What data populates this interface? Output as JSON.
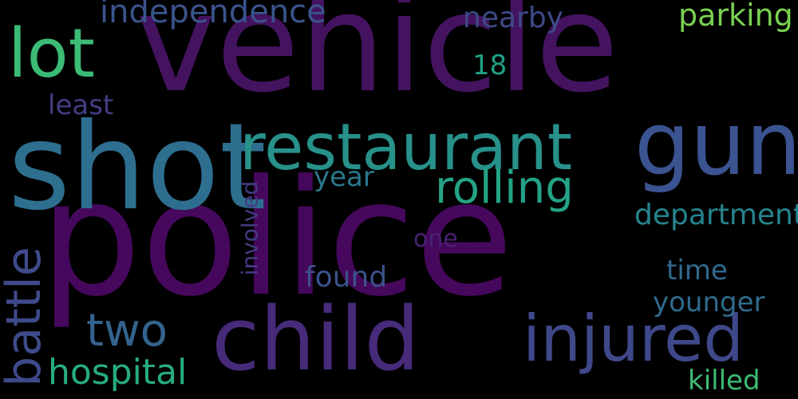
{
  "word_cloud": {
    "background": "#000000",
    "words": {
      "police": {
        "text": "police",
        "color": "#46085C"
      },
      "vehicle": {
        "text": "vehicle",
        "color": "#44135F"
      },
      "shot": {
        "text": "shot",
        "color": "#2E6E8E"
      },
      "child": {
        "text": "child",
        "color": "#472A7A"
      },
      "restaurant": {
        "text": "restaurant",
        "color": "#27918A"
      },
      "gun": {
        "text": "gun",
        "color": "#3B5390"
      },
      "lot": {
        "text": "lot",
        "color": "#3BBB75"
      },
      "injured": {
        "text": "injured",
        "color": "#3F4889"
      },
      "rolling": {
        "text": "rolling",
        "color": "#24A386"
      },
      "battle": {
        "text": "battle",
        "color": "#3F4A8A"
      },
      "two": {
        "text": "two",
        "color": "#33638D"
      },
      "hospital": {
        "text": "hospital",
        "color": "#27AD81"
      },
      "independence": {
        "text": "independence",
        "color": "#3A548C"
      },
      "parking": {
        "text": "parking",
        "color": "#7AD151"
      },
      "nearby": {
        "text": "nearby",
        "color": "#3E4A89"
      },
      "department": {
        "text": "department",
        "color": "#25848E"
      },
      "involved": {
        "text": "involved",
        "color": "#443A83"
      },
      "found": {
        "text": "found",
        "color": "#3B528B"
      },
      "time": {
        "text": "time",
        "color": "#31688E"
      },
      "younger": {
        "text": "younger",
        "color": "#2F6B8E"
      },
      "killed": {
        "text": "killed",
        "color": "#3DBC74"
      },
      "year": {
        "text": "year",
        "color": "#2A788E"
      },
      "one": {
        "text": "one",
        "color": "#482173"
      },
      "least": {
        "text": "least",
        "color": "#433E85"
      },
      "18": {
        "text": "18",
        "color": "#1FA088"
      }
    }
  }
}
